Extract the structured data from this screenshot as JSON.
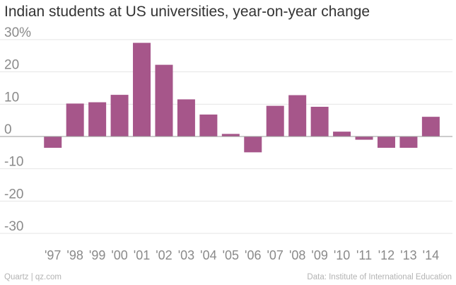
{
  "chart_data": {
    "type": "bar",
    "title": "Indian students at US universities, year-on-year change",
    "categories": [
      "'97",
      "'98",
      "'99",
      "'00",
      "'01",
      "'02",
      "'03",
      "'04",
      "'05",
      "'06",
      "'07",
      "'08",
      "'09",
      "'10",
      "'11",
      "'12",
      "'13",
      "'14"
    ],
    "values": [
      -3.5,
      10.2,
      10.6,
      12.9,
      29.0,
      22.2,
      11.5,
      6.8,
      0.8,
      -4.9,
      9.5,
      12.8,
      9.2,
      1.5,
      -1.0,
      -3.5,
      -3.5,
      6.1
    ],
    "xlabel": "",
    "ylabel": "",
    "ylim": [
      -30,
      30
    ],
    "yticks": [
      30,
      20,
      10,
      0,
      -10,
      -20,
      -30
    ],
    "ytick_labels": [
      "30%",
      "20",
      "10",
      "0",
      "-10",
      "-20",
      "-30"
    ],
    "grid": true,
    "bar_color": "#a6568a"
  },
  "footer": {
    "source_left": "Quartz | qz.com",
    "source_right": "Data: Institute of International Education"
  }
}
